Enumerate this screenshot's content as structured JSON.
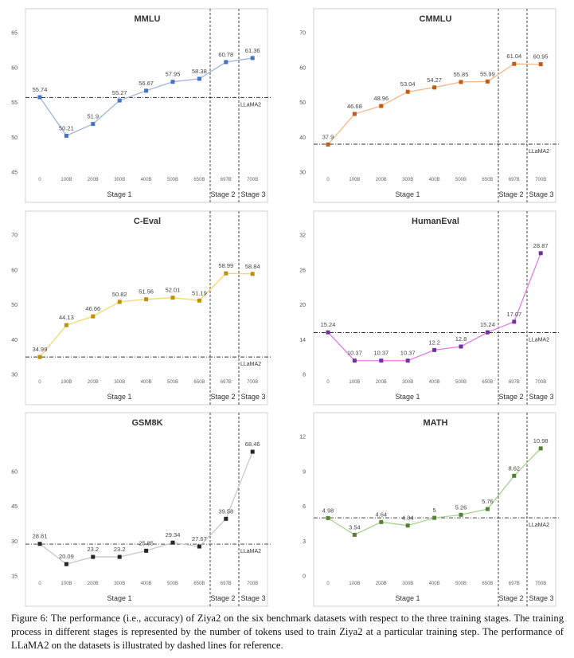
{
  "caption": "Figure 6: The performance (i.e., accuracy) of Ziya2 on the six benchmark datasets with respect to the three training stages. The training process in different stages is represented by the number of tokens used to train Ziya2 at a particular training step. The performance of LLaMA2 on the datasets is illustrated by dashed lines for reference.",
  "colors": {
    "stage1_bg": "#fdf8e6",
    "stage2_bg": "#eef3fb",
    "stage3_bg": "#ebf3e4",
    "reference_line": "#333333"
  },
  "chart_data": [
    {
      "type": "line",
      "title": "MMLU",
      "categories": [
        "0",
        "100B",
        "200B",
        "300B",
        "400B",
        "500B",
        "650B",
        "697B",
        "700B"
      ],
      "values": [
        55.74,
        50.21,
        51.9,
        55.27,
        56.67,
        57.95,
        58.38,
        60.78,
        61.36
      ],
      "value_labels": [
        "55.74",
        "50.21",
        "51.9",
        "55.27",
        "56.67",
        "57.95",
        "58.38",
        "60.78",
        "61.36"
      ],
      "yticks": [
        "45",
        "50",
        "55",
        "60",
        "65"
      ],
      "ylim": [
        45,
        65
      ],
      "reference": {
        "label": "LLaMA2",
        "value": 55.7
      },
      "stages": [
        "Stage 1",
        "Stage 2",
        "Stage 3"
      ],
      "line_color": "#9fb5e3",
      "marker_color": "#4472c4",
      "grid": false
    },
    {
      "type": "line",
      "title": "CMMLU",
      "categories": [
        "0",
        "100B",
        "200B",
        "300B",
        "400B",
        "500B",
        "650B",
        "697B",
        "700B"
      ],
      "values": [
        37.9,
        46.68,
        48.96,
        53.04,
        54.27,
        55.85,
        55.99,
        61.04,
        60.95
      ],
      "value_labels": [
        "37.9",
        "46.68",
        "48.96",
        "53.04",
        "54.27",
        "55.85",
        "55.99",
        "61.04",
        "60.95"
      ],
      "yticks": [
        "30",
        "40",
        "50",
        "60",
        "70"
      ],
      "ylim": [
        30,
        70
      ],
      "reference": {
        "label": "LLaMA2",
        "value": 38
      },
      "stages": [
        "Stage 1",
        "Stage 2",
        "Stage 3"
      ],
      "line_color": "#f4b88a",
      "marker_color": "#c55a11",
      "grid": false
    },
    {
      "type": "line",
      "title": "C-Eval",
      "categories": [
        "0",
        "100B",
        "200B",
        "300B",
        "400B",
        "500B",
        "650B",
        "697B",
        "700B"
      ],
      "values": [
        34.99,
        44.13,
        46.66,
        50.82,
        51.56,
        52.01,
        51.19,
        58.99,
        58.84
      ],
      "value_labels": [
        "34.99",
        "44.13",
        "46.66",
        "50.82",
        "51.56",
        "52.01",
        "51.19",
        "58.99",
        "58.84"
      ],
      "yticks": [
        "30",
        "40",
        "50",
        "60",
        "70"
      ],
      "ylim": [
        30,
        70
      ],
      "reference": {
        "label": "LLaMA2",
        "value": 35
      },
      "stages": [
        "Stage 1",
        "Stage 2",
        "Stage 3"
      ],
      "line_color": "#f5d76e",
      "marker_color": "#bf9000",
      "grid": false
    },
    {
      "type": "line",
      "title": "HumanEval",
      "categories": [
        "0",
        "100B",
        "200B",
        "300B",
        "400B",
        "500B",
        "650B",
        "697B",
        "700B"
      ],
      "values": [
        15.24,
        10.37,
        10.37,
        10.37,
        12.2,
        12.8,
        15.24,
        17.07,
        28.87
      ],
      "value_labels": [
        "15.24",
        "10.37",
        "10.37",
        "10.37",
        "12.2",
        "12.8",
        "15.24",
        "17.07",
        "28.87"
      ],
      "yticks": [
        "8",
        "14",
        "20",
        "26",
        "32"
      ],
      "ylim": [
        8,
        32
      ],
      "reference": {
        "label": "LLaMA2",
        "value": 15.2
      },
      "stages": [
        "Stage 1",
        "Stage 2",
        "Stage 3"
      ],
      "line_color": "#e37be3",
      "marker_color": "#7030a0",
      "grid": false
    },
    {
      "type": "line",
      "title": "GSM8K",
      "categories": [
        "0",
        "100B",
        "200B",
        "300B",
        "400B",
        "500B",
        "650B",
        "697B",
        "700B"
      ],
      "values": [
        28.81,
        20.09,
        23.2,
        23.2,
        25.85,
        29.34,
        27.67,
        39.58,
        68.46
      ],
      "value_labels": [
        "28.81",
        "20.09",
        "23.2",
        "23.2",
        "25.85",
        "29.34",
        "27.67",
        "39.58",
        "68.46"
      ],
      "yticks": [
        "15",
        "30",
        "45",
        "60"
      ],
      "ylim": [
        15,
        75
      ],
      "reference": {
        "label": "LLaMA2",
        "value": 28.7
      },
      "stages": [
        "Stage 1",
        "Stage 2",
        "Stage 3"
      ],
      "line_color": "#c8c8c8",
      "marker_color": "#262626",
      "grid": false
    },
    {
      "type": "line",
      "title": "MATH",
      "categories": [
        "0",
        "100B",
        "200B",
        "300B",
        "400B",
        "500B",
        "650B",
        "697B",
        "700B"
      ],
      "values": [
        4.98,
        3.54,
        4.64,
        4.34,
        5,
        5.26,
        5.76,
        8.62,
        10.98
      ],
      "value_labels": [
        "4.98",
        "3.54",
        "4.64",
        "4.34",
        "5",
        "5.26",
        "5.76",
        "8.62",
        "10.98"
      ],
      "yticks": [
        "0",
        "3",
        "6",
        "9",
        "12"
      ],
      "ylim": [
        0,
        12
      ],
      "reference": {
        "label": "LLaMA2",
        "value": 5.0
      },
      "stages": [
        "Stage 1",
        "Stage 2",
        "Stage 3"
      ],
      "line_color": "#a9d18e",
      "marker_color": "#548235",
      "grid": false
    }
  ]
}
